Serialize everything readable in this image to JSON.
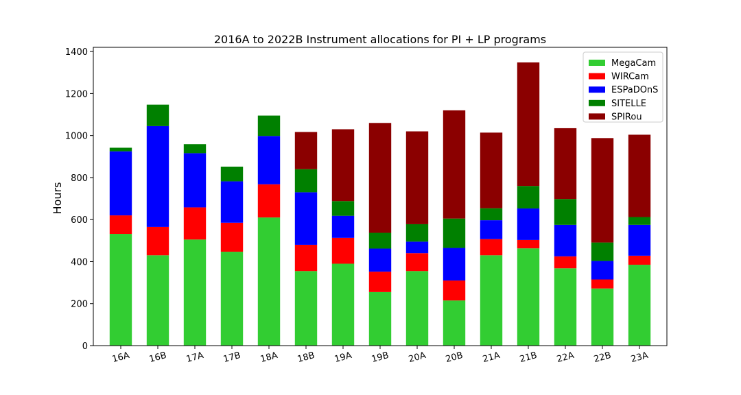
{
  "chart_data": {
    "type": "bar",
    "stacked": true,
    "title": "2016A to 2022B Instrument allocations for PI + LP programs",
    "xlabel": "",
    "ylabel": "Hours",
    "ylim": [
      0,
      1420
    ],
    "yticks": [
      0,
      200,
      400,
      600,
      800,
      1000,
      1200,
      1400
    ],
    "categories": [
      "16A",
      "16B",
      "17A",
      "17B",
      "18A",
      "18B",
      "19A",
      "19B",
      "20A",
      "20B",
      "21A",
      "21B",
      "22A",
      "22B",
      "23A"
    ],
    "series": [
      {
        "name": "MegaCam",
        "color": "#32cd32",
        "values": [
          532,
          430,
          505,
          447,
          610,
          355,
          390,
          255,
          355,
          215,
          430,
          463,
          368,
          272,
          385
        ]
      },
      {
        "name": "WIRCam",
        "color": "#ff0000",
        "values": [
          88,
          135,
          153,
          138,
          158,
          125,
          123,
          97,
          85,
          95,
          77,
          40,
          57,
          43,
          43
        ]
      },
      {
        "name": "ESPaDOnS",
        "color": "#0000ff",
        "values": [
          305,
          480,
          258,
          197,
          230,
          250,
          105,
          110,
          55,
          155,
          90,
          150,
          150,
          88,
          147
        ]
      },
      {
        "name": "SITELLE",
        "color": "#008000",
        "values": [
          17,
          102,
          43,
          70,
          97,
          110,
          70,
          75,
          83,
          140,
          57,
          107,
          123,
          88,
          37
        ]
      },
      {
        "name": "SPIRou",
        "color": "#8b0000",
        "values": [
          0,
          0,
          0,
          0,
          0,
          177,
          342,
          523,
          442,
          515,
          360,
          588,
          337,
          497,
          392
        ]
      }
    ],
    "legend": "top-right",
    "grid": false
  }
}
